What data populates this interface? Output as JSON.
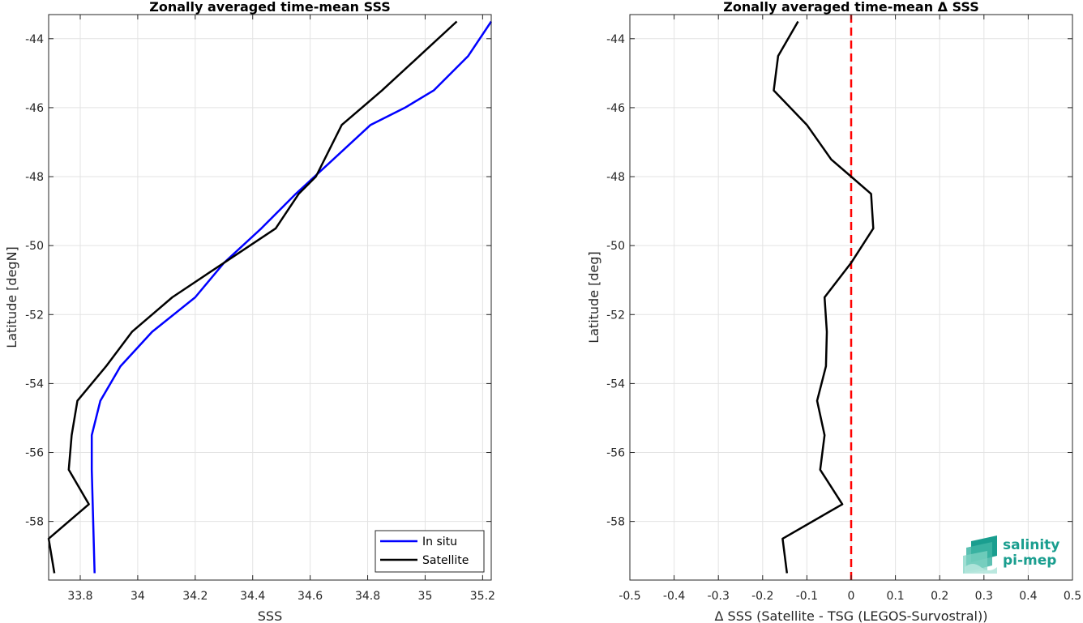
{
  "chart_data": [
    {
      "type": "line",
      "title": "Zonally averaged time-mean SSS",
      "xlabel": "SSS",
      "ylabel": "Latitude [degN]",
      "xlim": [
        33.69,
        35.23
      ],
      "ylim": [
        -59.7,
        -43.3
      ],
      "xticks": [
        33.8,
        34,
        34.2,
        34.4,
        34.6,
        34.8,
        35,
        35.2
      ],
      "yticks": [
        -58,
        -56,
        -54,
        -52,
        -50,
        -48,
        -46,
        -44
      ],
      "grid": true,
      "legend_position": "bottom-right",
      "series": [
        {
          "name": "In situ",
          "color": "#0000ff",
          "x": [
            35.23,
            35.15,
            35.03,
            34.93,
            34.81,
            34.68,
            34.55,
            34.43,
            34.3,
            34.2,
            34.05,
            33.94,
            33.87,
            33.84,
            33.84,
            33.85
          ],
          "y": [
            -43.5,
            -44.5,
            -45.5,
            -46.0,
            -46.5,
            -47.5,
            -48.5,
            -49.5,
            -50.5,
            -51.5,
            -52.5,
            -53.5,
            -54.5,
            -55.5,
            -56.5,
            -59.5
          ]
        },
        {
          "name": "Satellite",
          "color": "#000000",
          "x": [
            35.11,
            34.98,
            34.85,
            34.71,
            34.62,
            34.56,
            34.48,
            34.3,
            34.12,
            33.98,
            33.89,
            33.79,
            33.77,
            33.76,
            33.83,
            33.69,
            33.71
          ],
          "y": [
            -43.5,
            -44.5,
            -45.5,
            -46.5,
            -48.0,
            -48.5,
            -49.5,
            -50.5,
            -51.5,
            -52.5,
            -53.5,
            -54.5,
            -55.5,
            -56.5,
            -57.5,
            -58.5,
            -59.5
          ]
        }
      ]
    },
    {
      "type": "line",
      "title": "Zonally averaged time-mean Δ SSS",
      "xlabel": "Δ SSS (Satellite - TSG (LEGOS-Survostral))",
      "ylabel": "Latitude [deg]",
      "xlim": [
        -0.5,
        0.5
      ],
      "ylim": [
        -59.7,
        -43.3
      ],
      "xticks": [
        -0.5,
        -0.4,
        -0.3,
        -0.2,
        -0.1,
        0,
        0.1,
        0.2,
        0.3,
        0.4,
        0.5
      ],
      "xtick_labels": [
        "-0.5",
        "-0.4",
        "-0.3",
        "-0.2",
        "-0.1",
        "0",
        "0.1",
        "0.2",
        "0.3",
        "0.4",
        "0.5"
      ],
      "yticks": [
        -58,
        -56,
        -54,
        -52,
        -50,
        -48,
        -46,
        -44
      ],
      "grid": true,
      "reference_line": {
        "x": 0,
        "color": "#ff0000",
        "style": "dashed"
      },
      "series": [
        {
          "color": "#000000",
          "x": [
            -0.12,
            -0.165,
            -0.17,
            -0.175,
            -0.1,
            -0.045,
            0.0,
            0.045,
            0.05,
            0.0,
            -0.06,
            -0.055,
            -0.057,
            -0.077,
            -0.06,
            -0.07,
            -0.02,
            -0.155,
            -0.145
          ],
          "y": [
            -43.5,
            -44.5,
            -45.0,
            -45.5,
            -46.5,
            -47.5,
            -48.0,
            -48.5,
            -49.5,
            -50.5,
            -51.5,
            -52.5,
            -53.5,
            -54.5,
            -55.5,
            -56.5,
            -57.5,
            -58.5,
            -59.5
          ]
        }
      ]
    }
  ],
  "logo": {
    "line1": "salinity",
    "line2": "pi-mep"
  }
}
